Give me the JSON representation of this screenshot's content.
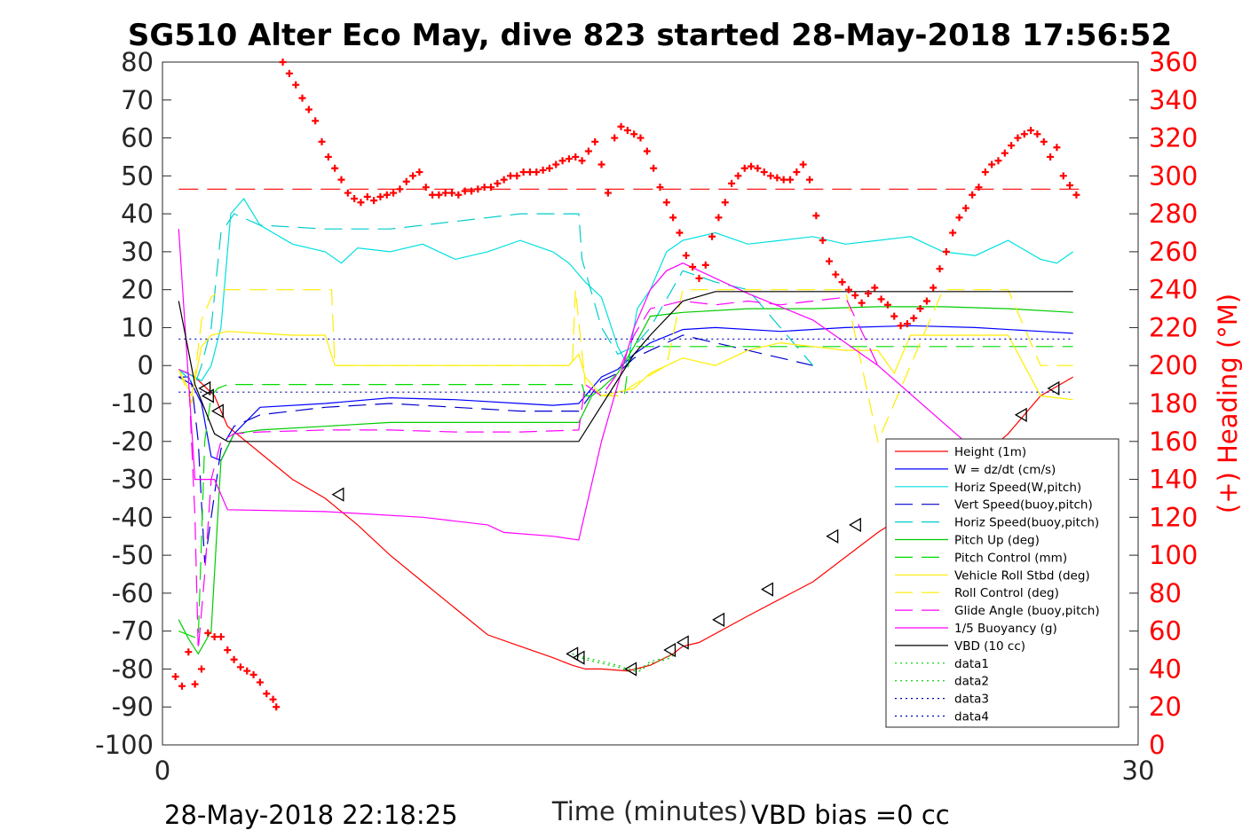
{
  "chart_data": {
    "type": "line",
    "title": "SG510 Alter Eco May, dive 823 started 28-May-2018 17:56:52",
    "xlabel": "Time (minutes)",
    "ylabel": "",
    "y2label": "(+) Heading (°M)",
    "xlim": [
      0,
      30
    ],
    "ylim": [
      -100,
      80
    ],
    "y2lim": [
      0,
      360
    ],
    "x_ticks": [
      "0",
      "30"
    ],
    "y_ticks": [
      "80",
      "70",
      "60",
      "50",
      "40",
      "30",
      "20",
      "10",
      "0",
      "-10",
      "-20",
      "-30",
      "-40",
      "-50",
      "-60",
      "-70",
      "-80",
      "-90",
      "-100"
    ],
    "y2_ticks": [
      "360",
      "340",
      "320",
      "300",
      "280",
      "260",
      "240",
      "220",
      "200",
      "180",
      "160",
      "140",
      "120",
      "100",
      "80",
      "60",
      "40",
      "20",
      "0"
    ],
    "footer_left": "28-May-2018 22:18:25",
    "footer_right": "VBD bias =0 cc",
    "grid": false,
    "legend_position": "bottom-right",
    "series": [
      {
        "name": "Height (1m)",
        "color": "#ff0000",
        "style": "solid",
        "x": [
          0.5,
          1.0,
          1.6,
          2.0,
          3,
          4,
          5,
          6,
          7,
          8,
          9,
          10,
          11,
          12,
          12.6,
          13,
          13.5,
          14.3,
          15,
          15.7,
          16,
          16.5,
          18,
          20,
          22,
          24,
          26,
          27,
          28
        ],
        "y": [
          -1,
          -3,
          -8,
          -16,
          -23,
          -30,
          -35,
          -42,
          -50,
          -57,
          -64,
          -71,
          -74,
          -77,
          -79,
          -80,
          -80,
          -80.5,
          -79,
          -76,
          -74,
          -73,
          -66,
          -57,
          -44,
          -33,
          -18,
          -8,
          -3
        ]
      },
      {
        "name": "W = dz/dt (cm/s)",
        "color": "#0000ff",
        "style": "solid",
        "x": [
          0.5,
          0.8,
          1.2,
          1.5,
          1.8,
          2.2,
          3,
          5,
          7,
          9,
          11,
          12,
          12.8,
          13.5,
          14,
          14.5,
          15,
          16,
          17,
          19,
          21,
          23,
          25,
          27,
          28
        ],
        "y": [
          -3,
          -3,
          -10,
          -24,
          -25,
          -18,
          -11,
          -10,
          -8.5,
          -9,
          -10,
          -10.5,
          -10,
          -3,
          -1,
          3,
          6,
          9.5,
          10,
          9,
          10,
          10.5,
          10,
          9,
          8.5
        ]
      },
      {
        "name": "Horiz Speed(W,pitch)",
        "color": "#00e0e0",
        "style": "solid",
        "x": [
          0.5,
          1.2,
          1.5,
          1.8,
          2.1,
          2.5,
          3,
          4,
          5,
          5.5,
          6,
          7,
          8,
          9,
          10,
          11,
          12,
          12.5,
          13,
          13.5,
          14,
          14.3,
          14.6,
          15,
          15.5,
          16,
          17,
          18,
          19,
          20,
          21,
          22,
          23,
          24,
          25,
          26,
          27,
          27.5,
          28
        ],
        "y": [
          -1,
          -4,
          0,
          10,
          40,
          44,
          37,
          32,
          30,
          27,
          31,
          30,
          32,
          28,
          30,
          33,
          30,
          27,
          22,
          18,
          5,
          0,
          15,
          20,
          30,
          33,
          35,
          32,
          33,
          34,
          32,
          33,
          34,
          30,
          29,
          33,
          28,
          27,
          30
        ]
      },
      {
        "name": "Vert Speed(buoy,pitch)",
        "color": "#0000cc",
        "style": "dashed",
        "x": [
          0.5,
          0.9,
          1.1,
          1.3,
          1.5,
          1.8,
          2.2,
          3,
          5,
          7,
          9,
          11,
          12.8,
          13.5,
          14,
          14.5,
          15,
          15.5,
          16,
          18,
          20
        ],
        "y": [
          -3,
          -5,
          -20,
          -52,
          -40,
          -22,
          -16,
          -13,
          -11,
          -10,
          -11,
          -12,
          -12,
          -4,
          -2,
          2,
          4,
          6,
          8,
          4,
          0
        ]
      },
      {
        "name": "Horiz Speed(buoy,pitch)",
        "color": "#00cccc",
        "style": "dashed",
        "x": [
          0.5,
          1.0,
          1.2,
          1.5,
          1.8,
          2.2,
          3,
          5,
          7,
          9,
          11,
          12.8,
          12.9,
          13.5,
          14,
          14.5,
          15,
          16,
          17,
          18,
          19,
          20
        ],
        "y": [
          -1,
          -5,
          0,
          10,
          35,
          40,
          37,
          36,
          36,
          38,
          40,
          40,
          28,
          10,
          3,
          5,
          10,
          25,
          22,
          20,
          10,
          0
        ]
      },
      {
        "name": "Pitch Up (deg)",
        "color": "#00cc00",
        "style": "solid",
        "x": [
          0.5,
          0.8,
          1.1,
          1.5,
          1.8,
          2.2,
          3,
          5,
          7,
          9,
          11,
          12.8,
          13.2,
          13.5,
          14,
          14.5,
          15,
          16,
          18,
          20,
          22,
          24,
          26,
          28
        ],
        "y": [
          -67,
          -72,
          -76,
          -70,
          -25,
          -18,
          -17,
          -16,
          -15,
          -15,
          -15,
          -15,
          -8,
          -6,
          -2,
          5,
          13,
          14,
          15,
          15,
          15.5,
          15.5,
          15,
          14
        ]
      },
      {
        "name": "Pitch Control (mm)",
        "color": "#00dd00",
        "style": "dashed",
        "x": [
          0.5,
          1.1,
          1.3,
          1.5,
          1.7,
          2.0,
          3,
          5,
          7,
          9,
          11,
          12.9,
          13.0,
          14.2,
          14.4,
          16,
          18,
          20,
          22,
          24,
          26,
          28
        ],
        "y": [
          -70,
          -72,
          -20,
          -8,
          -6,
          -5,
          -5,
          -5,
          -5,
          -5,
          -5,
          -5,
          -8,
          -8,
          5,
          5,
          5,
          5,
          5,
          5,
          5,
          5
        ]
      },
      {
        "name": "Vehicle Roll Stbd (deg)",
        "color": "#ffee00",
        "style": "solid",
        "x": [
          0.5,
          0.9,
          1.2,
          1.5,
          2,
          3,
          4,
          5,
          5.3,
          6,
          8,
          10,
          12.5,
          12.8,
          13,
          13.5,
          14,
          14.5,
          15,
          16,
          17,
          18,
          19,
          20,
          21,
          22,
          22.5,
          23,
          25,
          26,
          26.5,
          27,
          28
        ],
        "y": [
          -1,
          -8,
          5,
          8,
          9,
          8.5,
          8,
          8,
          0,
          0,
          0,
          0,
          0,
          3,
          -3,
          -8,
          -7,
          -6,
          -2,
          2,
          0,
          4,
          6,
          5,
          4,
          4,
          -2,
          8,
          8,
          8,
          0,
          -8,
          -9
        ]
      },
      {
        "name": "Roll Control (deg)",
        "color": "#ffee00",
        "style": "dashed",
        "x": [
          0.5,
          0.9,
          1.2,
          1.5,
          1.8,
          2,
          4,
          5.2,
          5.3,
          6,
          8,
          10,
          12.6,
          12.7,
          13,
          13.5,
          14,
          14.5,
          15.5,
          16,
          20,
          21,
          22,
          23,
          24,
          25,
          26,
          27,
          28
        ],
        "y": [
          -1,
          -10,
          12,
          18,
          20,
          20,
          20,
          20,
          0,
          0,
          0,
          0,
          0,
          20,
          -5,
          -8,
          -8,
          -5,
          0,
          20,
          20,
          20,
          -20,
          0,
          20,
          20,
          20,
          0,
          0
        ]
      },
      {
        "name": "Glide Angle (buoy,pitch)",
        "color": "#ff00ff",
        "style": "dashed",
        "x": [
          0.5,
          0.8,
          1.0,
          1.1,
          1.3,
          1.5,
          1.8,
          2.2,
          3,
          5,
          7,
          9,
          11,
          12.8,
          13,
          13.5,
          14,
          14.5,
          15,
          16,
          17,
          18,
          19,
          20,
          21,
          22
        ],
        "y": [
          -1,
          -2,
          -40,
          -75,
          -55,
          -30,
          -20,
          -18,
          -17.5,
          -17,
          -17,
          -17.5,
          -17.5,
          -17,
          -5,
          -8,
          -2,
          8,
          15,
          17,
          16,
          17,
          16,
          17,
          18,
          0
        ]
      },
      {
        "name": "1/5 Buoyancy (g)",
        "color": "#ff00ff",
        "style": "solid",
        "x": [
          0.5,
          1.0,
          1.6,
          2.0,
          5,
          8,
          10,
          10.5,
          12,
          12.8,
          13.5,
          14.5,
          15,
          15.5,
          16,
          17,
          18,
          20,
          22,
          24,
          26,
          28
        ],
        "y": [
          36,
          -30,
          -30,
          -38,
          -38.5,
          -40,
          -42,
          -44,
          -45,
          -46,
          -20,
          10,
          20,
          25,
          27,
          23,
          19,
          12,
          0,
          -15,
          -30,
          -45
        ]
      },
      {
        "name": "VBD (10 cc)",
        "color": "#000000",
        "style": "solid",
        "x": [
          0.5,
          1.0,
          1.6,
          2.0,
          4,
          6,
          8,
          10,
          12.8,
          14.5,
          15,
          16,
          17,
          20,
          23,
          26,
          28
        ],
        "y": [
          17,
          -5,
          -18,
          -20,
          -20,
          -20,
          -20,
          -20,
          -20,
          3,
          8,
          17,
          19.5,
          19.5,
          19.5,
          19.5,
          19.5
        ]
      },
      {
        "name": "data1",
        "color": "#00cc00",
        "style": "dotted",
        "x": [
          12.6,
          13,
          13.5,
          14,
          14.3,
          14.7,
          15,
          15.5,
          15.7
        ],
        "y": [
          -76,
          -77,
          -78,
          -79,
          -80,
          -80,
          -78,
          -77,
          -76
        ]
      },
      {
        "name": "data2",
        "color": "#00cc00",
        "style": "dotted",
        "x": [
          12.6,
          13,
          13.5,
          14,
          14.3,
          14.7,
          15,
          15.5,
          15.7
        ],
        "y": [
          -76,
          -77.5,
          -78.5,
          -79.5,
          -80.5,
          -80.5,
          -78.5,
          -77.5,
          -76.5
        ]
      },
      {
        "name": "data3",
        "color": "#0000aa",
        "style": "dotted",
        "x": [
          0.5,
          28
        ],
        "y": [
          7,
          7
        ]
      },
      {
        "name": "data4",
        "color": "#0000aa",
        "style": "dotted",
        "x": [
          0.5,
          28
        ],
        "y": [
          -7,
          -7
        ]
      }
    ],
    "heading": {
      "axis": "right",
      "color": "#ff0000",
      "marker": "+",
      "mean": 293,
      "x": [
        0.4,
        0.6,
        0.8,
        1.0,
        1.2,
        1.4,
        1.6,
        1.8,
        2.0,
        2.2,
        2.4,
        2.6,
        2.8,
        3.0,
        3.2,
        3.4,
        3.5,
        3.7,
        3.9,
        4.1,
        4.3,
        4.5,
        4.7,
        4.9,
        5.1,
        5.3,
        5.5,
        5.7,
        5.9,
        6.1,
        6.3,
        6.5,
        6.7,
        6.9,
        7.1,
        7.3,
        7.5,
        7.7,
        7.9,
        8.1,
        8.3,
        8.5,
        8.7,
        8.9,
        9.1,
        9.3,
        9.5,
        9.7,
        9.9,
        10.1,
        10.3,
        10.5,
        10.7,
        10.9,
        11.1,
        11.3,
        11.5,
        11.7,
        11.9,
        12.1,
        12.3,
        12.5,
        12.7,
        12.9,
        13.1,
        13.3,
        13.5,
        13.7,
        13.9,
        14.1,
        14.3,
        14.5,
        14.7,
        14.9,
        15.1,
        15.3,
        15.5,
        15.7,
        15.9,
        16.1,
        16.3,
        16.5,
        16.7,
        16.9,
        17.1,
        17.3,
        17.5,
        17.7,
        17.9,
        18.1,
        18.3,
        18.5,
        18.7,
        18.9,
        19.1,
        19.3,
        19.5,
        19.7,
        19.9,
        20.1,
        20.3,
        20.5,
        20.7,
        20.9,
        21.1,
        21.3,
        21.5,
        21.7,
        21.9,
        22.1,
        22.3,
        22.5,
        22.7,
        22.9,
        23.1,
        23.3,
        23.5,
        23.7,
        23.9,
        24.1,
        24.3,
        24.5,
        24.7,
        24.9,
        25.1,
        25.3,
        25.5,
        25.7,
        25.9,
        26.1,
        26.3,
        26.5,
        26.7,
        26.9,
        27.1,
        27.3,
        27.5,
        27.7,
        27.9,
        28.1
      ],
      "y": [
        36,
        31,
        49,
        32,
        40,
        59,
        57,
        57,
        50,
        45,
        41,
        39,
        37,
        33,
        27,
        24,
        20,
        360,
        354,
        348,
        341,
        335,
        329,
        318,
        310,
        304,
        298,
        291,
        288,
        286,
        289,
        287,
        289,
        290,
        291,
        293,
        297,
        300,
        302,
        294,
        290,
        290,
        291,
        291,
        290,
        292,
        292,
        293,
        294,
        294,
        296,
        298,
        300,
        300,
        302,
        302,
        302,
        303,
        304,
        306,
        308,
        309,
        310,
        308,
        313,
        318,
        306,
        291,
        320,
        326,
        324,
        322,
        320,
        313,
        304,
        294,
        286,
        278,
        270,
        258,
        252,
        246,
        253,
        268,
        278,
        286,
        296,
        300,
        304,
        305,
        304,
        302,
        300,
        299,
        298,
        298,
        302,
        306,
        298,
        279,
        266,
        255,
        248,
        244,
        240,
        237,
        233,
        238,
        241,
        235,
        232,
        226,
        221,
        222,
        225,
        230,
        234,
        241,
        251,
        260,
        270,
        278,
        283,
        290,
        294,
        302,
        306,
        308,
        312,
        316,
        320,
        322,
        324,
        322,
        318,
        310,
        315,
        300,
        295,
        290
      ]
    },
    "markers": {
      "shape": "triangle-left",
      "color": "#000000",
      "x": [
        1.3,
        1.4,
        1.7,
        5.4,
        12.6,
        12.8,
        14.4,
        15.6,
        16.0,
        17.1,
        18.6,
        20.6,
        21.3,
        22.6,
        26.4,
        27.4
      ],
      "y": [
        -6,
        -8,
        -12,
        -34,
        -76,
        -77,
        -80,
        -75,
        -73,
        -67,
        -59,
        -45,
        -42,
        -35,
        -13,
        -6
      ]
    }
  }
}
